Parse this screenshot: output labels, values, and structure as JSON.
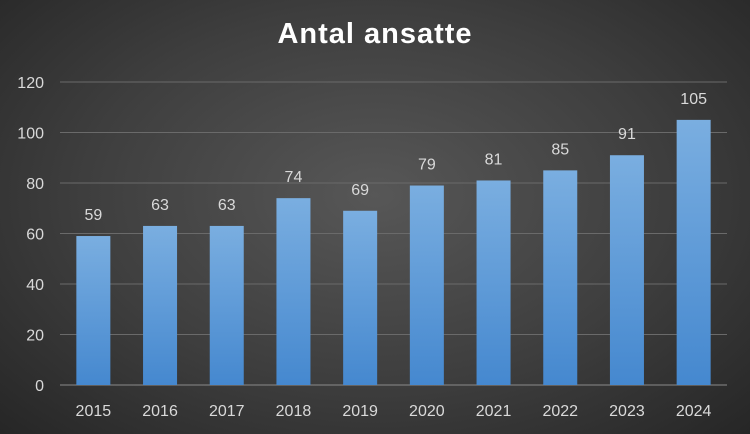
{
  "chart_data": {
    "type": "bar",
    "title": "Antal ansatte",
    "categories": [
      "2015",
      "2016",
      "2017",
      "2018",
      "2019",
      "2020",
      "2021",
      "2022",
      "2023",
      "2024"
    ],
    "series": [
      {
        "values": [
          59,
          63,
          63,
          74,
          69,
          79,
          81,
          85,
          91,
          105
        ]
      }
    ],
    "xlabel": "",
    "ylabel": "",
    "ylim": [
      0,
      120
    ],
    "yticks": [
      "0",
      "20",
      "40",
      "60",
      "80",
      "100",
      "120"
    ],
    "grid": true,
    "legend": "none",
    "data_labels": true,
    "colors": {
      "bar_top": "#7aaee0",
      "bar_bottom": "#4588cf",
      "grid": "#6a6a6a",
      "text": "#d9d9d9"
    }
  }
}
